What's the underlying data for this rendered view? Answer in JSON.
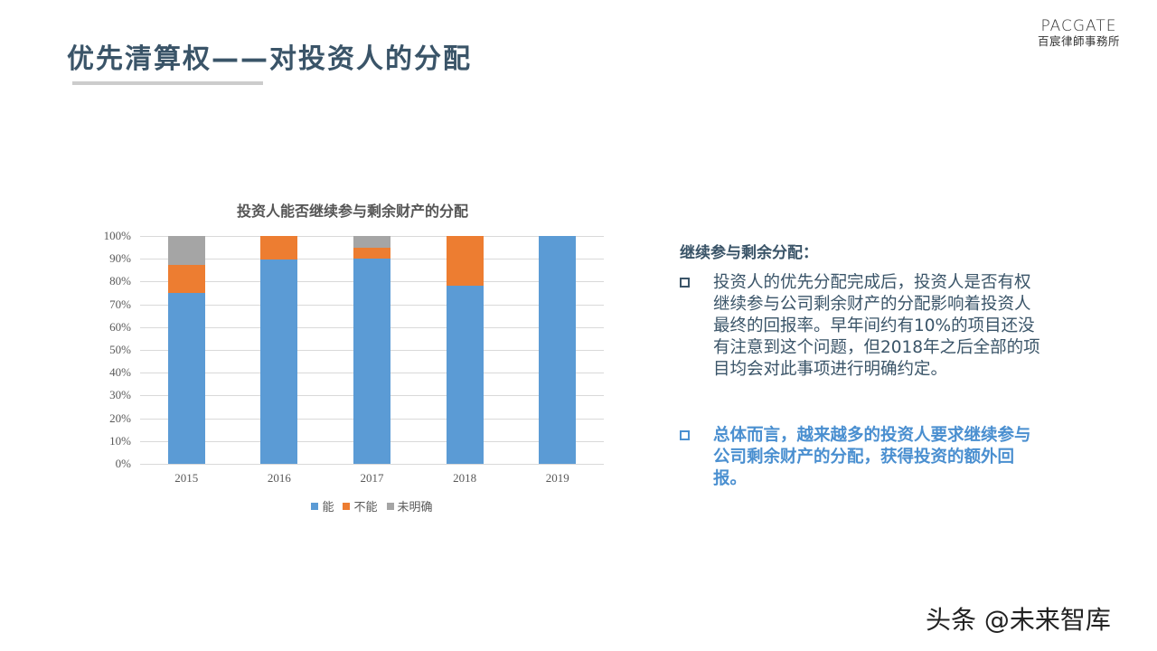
{
  "slide": {
    "title": "优先清算权——对投资人的分配",
    "logo_en": "PACGATE",
    "logo_cn": "百宸律師事務所",
    "watermark": "头条 @未来智库"
  },
  "chart_data": {
    "type": "bar",
    "stacked": true,
    "percent": true,
    "title": "投资人能否继续参与剩余财产的分配",
    "xlabel": "",
    "ylabel": "",
    "ylim": [
      0,
      100
    ],
    "yticks": [
      "100%",
      "90%",
      "80%",
      "70%",
      "60%",
      "50%",
      "40%",
      "30%",
      "20%",
      "10%",
      "0%"
    ],
    "grid": true,
    "legend_position": "bottom",
    "categories": [
      "2015",
      "2016",
      "2017",
      "2018",
      "2019"
    ],
    "series": [
      {
        "name": "能",
        "color": "#5b9bd5",
        "values": [
          75,
          89.5,
          90,
          78,
          100
        ]
      },
      {
        "name": "不能",
        "color": "#ed7d31",
        "values": [
          12.5,
          10.5,
          5,
          22,
          0
        ]
      },
      {
        "name": "未明确",
        "color": "#a5a5a5",
        "values": [
          12.5,
          0,
          5,
          0,
          0
        ]
      }
    ]
  },
  "side_panel": {
    "heading": "继续参与剩余分配：",
    "bullets": [
      {
        "text": "投资人的优先分配完成后，投资人是否有权继续参与公司剩余财产的分配影响着投资人最终的回报率。早年间约有10%的项目还没有注意到这个问题，但2018年之后全部的项目均会对此事项进行明确约定。"
      },
      {
        "text": "总体而言，越来越多的投资人要求继续参与公司剩余财产的分配，获得投资的额外回报。"
      }
    ]
  }
}
